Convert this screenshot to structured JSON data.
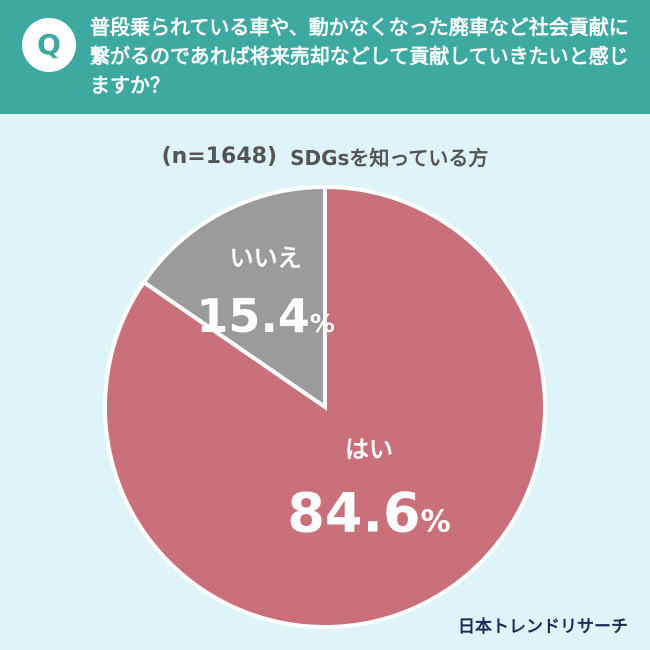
{
  "question": {
    "badge": "Q",
    "text": "普段乗られている車や、動かなくなった廃車など社会貢献に繋がるのであれば将来売却などして貢献していきたいと感じますか？"
  },
  "subtitle": {
    "sample": "(n=1648)",
    "group": "SDGsを知っている方"
  },
  "chart_data": {
    "type": "pie",
    "categories": [
      "はい",
      "いいえ"
    ],
    "values": [
      84.6,
      15.4
    ],
    "value_labels": [
      "84.6%",
      "15.4%"
    ],
    "colors": [
      "#c9707a",
      "#9b9b9b"
    ],
    "start_angle": "12 o'clock, clockwise"
  },
  "brand": "日本トレンドリサーチ",
  "colors": {
    "header": "#3ea9a0",
    "background": "#dff4f8"
  }
}
